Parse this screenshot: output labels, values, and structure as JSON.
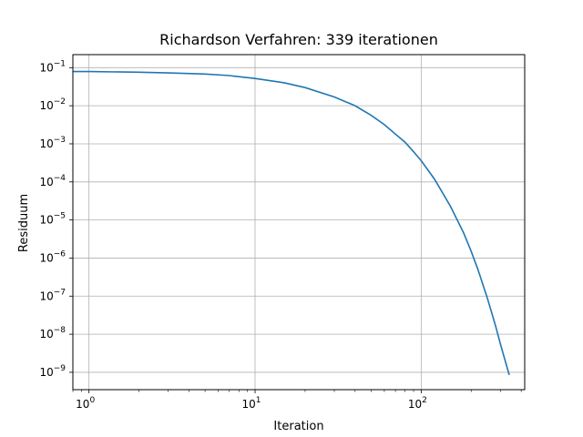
{
  "chart_data": {
    "type": "line",
    "title": "Richardson Verfahren: 339 iterationen",
    "xlabel": "Iteration",
    "ylabel": "Residuum",
    "xscale": "log",
    "yscale": "log",
    "xlim": [
      0.8,
      420
    ],
    "ylim": [
      3.5e-10,
      0.22
    ],
    "grid": true,
    "line_color": "#1f77b4",
    "x_ticks": [
      {
        "value": 1,
        "base": "10",
        "exp": "0"
      },
      {
        "value": 10,
        "base": "10",
        "exp": "1"
      },
      {
        "value": 100,
        "base": "10",
        "exp": "2"
      }
    ],
    "y_ticks": [
      {
        "value": 0.1,
        "base": "10",
        "exp": "−1"
      },
      {
        "value": 0.01,
        "base": "10",
        "exp": "−2"
      },
      {
        "value": 0.001,
        "base": "10",
        "exp": "−3"
      },
      {
        "value": 0.0001,
        "base": "10",
        "exp": "−4"
      },
      {
        "value": 1e-05,
        "base": "10",
        "exp": "−5"
      },
      {
        "value": 1e-06,
        "base": "10",
        "exp": "−6"
      },
      {
        "value": 1e-07,
        "base": "10",
        "exp": "−7"
      },
      {
        "value": 1e-08,
        "base": "10",
        "exp": "−8"
      },
      {
        "value": 1e-09,
        "base": "10",
        "exp": "−9"
      }
    ],
    "series": [
      {
        "x": [
          0.8,
          1,
          2,
          3,
          5,
          7,
          10,
          15,
          20,
          30,
          40,
          50,
          60,
          70,
          80,
          90,
          100,
          120,
          150,
          180,
          200,
          220,
          250,
          280,
          300,
          339
        ],
        "y": [
          0.079,
          0.079,
          0.076,
          0.073,
          0.068,
          0.062,
          0.052,
          0.04,
          0.03,
          0.017,
          0.01,
          0.0056,
          0.0032,
          0.0018,
          0.0011,
          0.00062,
          0.00036,
          0.00012,
          2.3e-05,
          4.6e-06,
          1.5e-06,
          4.9e-07,
          9e-08,
          1.7e-08,
          5.5e-09,
          8.5e-10
        ]
      }
    ]
  }
}
